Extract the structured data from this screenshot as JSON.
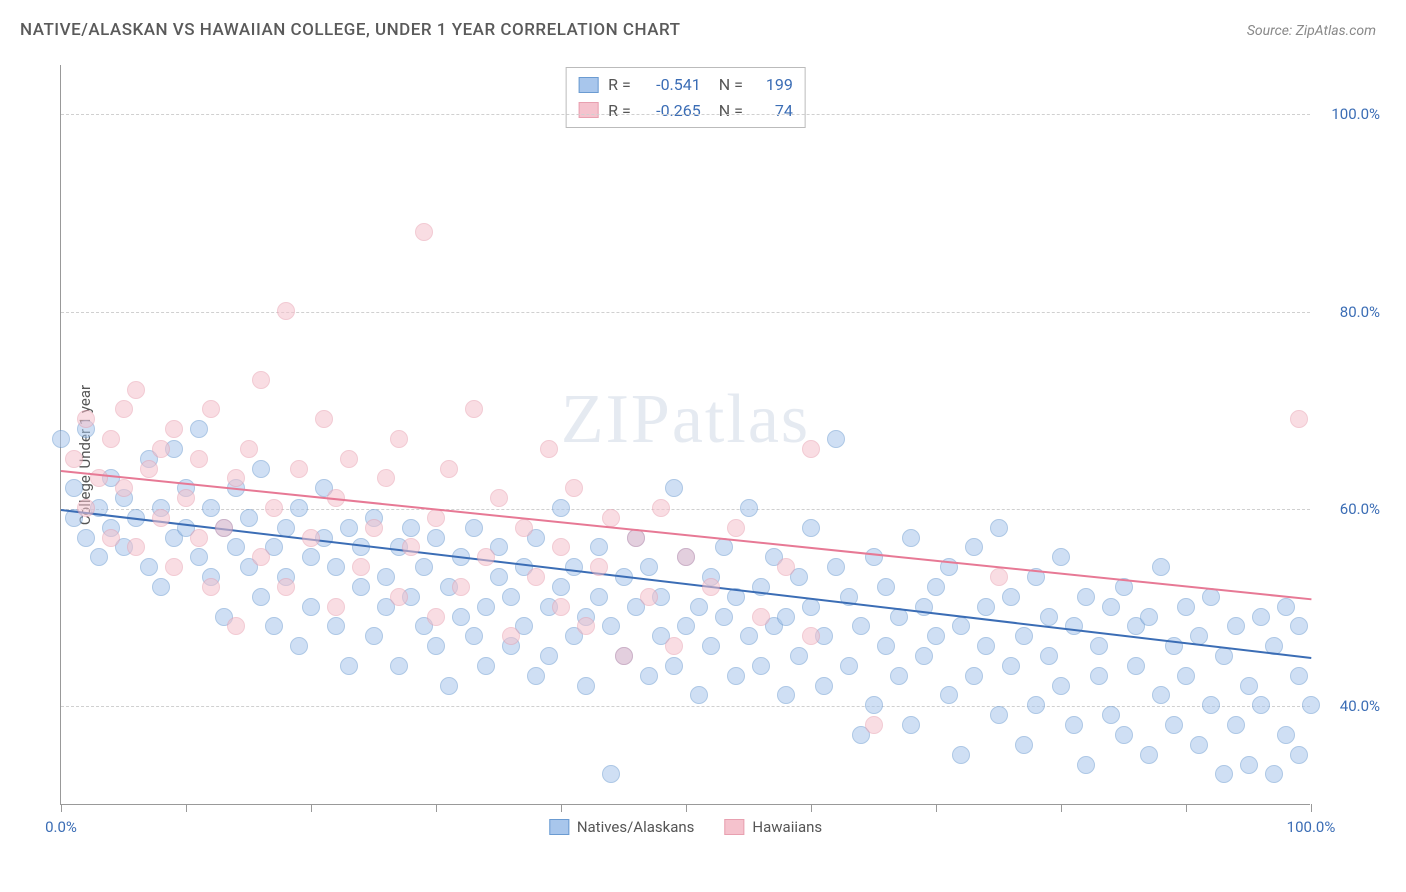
{
  "title": "NATIVE/ALASKAN VS HAWAIIAN COLLEGE, UNDER 1 YEAR CORRELATION CHART",
  "source": "Source: ZipAtlas.com",
  "ylabel": "College, Under 1 year",
  "watermark": "ZIPatlas",
  "chart": {
    "type": "scatter",
    "xlim": [
      0,
      100
    ],
    "ylim": [
      30,
      105
    ],
    "ytick_values": [
      40,
      60,
      80,
      100
    ],
    "ytick_labels": [
      "40.0%",
      "60.0%",
      "80.0%",
      "100.0%"
    ],
    "xtick_values": [
      0,
      10,
      20,
      30,
      40,
      50,
      60,
      70,
      80,
      90,
      100
    ],
    "xtick_label_left": "0.0%",
    "xtick_label_right": "100.0%",
    "grid_color": "#d0d0d0",
    "axis_color": "#999999",
    "label_color": "#3b6db5",
    "background_color": "#ffffff",
    "point_radius": 9,
    "point_opacity": 0.55,
    "series": [
      {
        "name": "Natives/Alaskans",
        "fill": "#a8c6ec",
        "stroke": "#6b9bd1",
        "R": "-0.541",
        "N": "199",
        "trend": {
          "x1": 0,
          "y1": 60,
          "x2": 100,
          "y2": 45,
          "color": "#3b6db5",
          "width": 2
        },
        "points": [
          [
            1,
            59
          ],
          [
            1,
            62
          ],
          [
            2,
            68
          ],
          [
            2,
            57
          ],
          [
            3,
            60
          ],
          [
            3,
            55
          ],
          [
            4,
            63
          ],
          [
            4,
            58
          ],
          [
            5,
            56
          ],
          [
            5,
            61
          ],
          [
            6,
            59
          ],
          [
            7,
            65
          ],
          [
            7,
            54
          ],
          [
            8,
            60
          ],
          [
            8,
            52
          ],
          [
            9,
            66
          ],
          [
            9,
            57
          ],
          [
            10,
            58
          ],
          [
            10,
            62
          ],
          [
            11,
            55
          ],
          [
            11,
            68
          ],
          [
            12,
            53
          ],
          [
            12,
            60
          ],
          [
            13,
            58
          ],
          [
            13,
            49
          ],
          [
            14,
            56
          ],
          [
            14,
            62
          ],
          [
            15,
            54
          ],
          [
            15,
            59
          ],
          [
            16,
            51
          ],
          [
            16,
            64
          ],
          [
            17,
            56
          ],
          [
            17,
            48
          ],
          [
            18,
            58
          ],
          [
            18,
            53
          ],
          [
            19,
            60
          ],
          [
            19,
            46
          ],
          [
            20,
            55
          ],
          [
            20,
            50
          ],
          [
            21,
            57
          ],
          [
            21,
            62
          ],
          [
            22,
            48
          ],
          [
            22,
            54
          ],
          [
            23,
            58
          ],
          [
            23,
            44
          ],
          [
            24,
            52
          ],
          [
            24,
            56
          ],
          [
            25,
            47
          ],
          [
            25,
            59
          ],
          [
            26,
            53
          ],
          [
            26,
            50
          ],
          [
            27,
            56
          ],
          [
            27,
            44
          ],
          [
            28,
            51
          ],
          [
            28,
            58
          ],
          [
            29,
            48
          ],
          [
            29,
            54
          ],
          [
            30,
            46
          ],
          [
            30,
            57
          ],
          [
            31,
            52
          ],
          [
            31,
            42
          ],
          [
            32,
            55
          ],
          [
            32,
            49
          ],
          [
            33,
            47
          ],
          [
            33,
            58
          ],
          [
            34,
            50
          ],
          [
            34,
            44
          ],
          [
            35,
            53
          ],
          [
            35,
            56
          ],
          [
            36,
            46
          ],
          [
            36,
            51
          ],
          [
            37,
            48
          ],
          [
            37,
            54
          ],
          [
            38,
            43
          ],
          [
            38,
            57
          ],
          [
            39,
            50
          ],
          [
            39,
            45
          ],
          [
            40,
            52
          ],
          [
            40,
            60
          ],
          [
            41,
            47
          ],
          [
            41,
            54
          ],
          [
            42,
            49
          ],
          [
            42,
            42
          ],
          [
            43,
            56
          ],
          [
            43,
            51
          ],
          [
            44,
            33
          ],
          [
            44,
            48
          ],
          [
            45,
            53
          ],
          [
            45,
            45
          ],
          [
            46,
            50
          ],
          [
            46,
            57
          ],
          [
            47,
            43
          ],
          [
            47,
            54
          ],
          [
            48,
            47
          ],
          [
            48,
            51
          ],
          [
            49,
            62
          ],
          [
            49,
            44
          ],
          [
            50,
            55
          ],
          [
            50,
            48
          ],
          [
            51,
            50
          ],
          [
            51,
            41
          ],
          [
            52,
            53
          ],
          [
            52,
            46
          ],
          [
            53,
            49
          ],
          [
            53,
            56
          ],
          [
            54,
            43
          ],
          [
            54,
            51
          ],
          [
            55,
            47
          ],
          [
            55,
            60
          ],
          [
            56,
            44
          ],
          [
            56,
            52
          ],
          [
            57,
            48
          ],
          [
            57,
            55
          ],
          [
            58,
            41
          ],
          [
            58,
            49
          ],
          [
            59,
            53
          ],
          [
            59,
            45
          ],
          [
            60,
            50
          ],
          [
            60,
            58
          ],
          [
            61,
            42
          ],
          [
            61,
            47
          ],
          [
            62,
            54
          ],
          [
            62,
            67
          ],
          [
            63,
            44
          ],
          [
            63,
            51
          ],
          [
            64,
            37
          ],
          [
            64,
            48
          ],
          [
            65,
            55
          ],
          [
            65,
            40
          ],
          [
            66,
            46
          ],
          [
            66,
            52
          ],
          [
            67,
            49
          ],
          [
            67,
            43
          ],
          [
            68,
            57
          ],
          [
            68,
            38
          ],
          [
            69,
            50
          ],
          [
            69,
            45
          ],
          [
            70,
            47
          ],
          [
            70,
            52
          ],
          [
            71,
            41
          ],
          [
            71,
            54
          ],
          [
            72,
            48
          ],
          [
            72,
            35
          ],
          [
            73,
            56
          ],
          [
            73,
            43
          ],
          [
            74,
            50
          ],
          [
            74,
            46
          ],
          [
            75,
            39
          ],
          [
            75,
            58
          ],
          [
            76,
            44
          ],
          [
            76,
            51
          ],
          [
            77,
            36
          ],
          [
            77,
            47
          ],
          [
            78,
            53
          ],
          [
            78,
            40
          ],
          [
            79,
            49
          ],
          [
            79,
            45
          ],
          [
            80,
            42
          ],
          [
            80,
            55
          ],
          [
            81,
            38
          ],
          [
            81,
            48
          ],
          [
            82,
            51
          ],
          [
            82,
            34
          ],
          [
            83,
            46
          ],
          [
            83,
            43
          ],
          [
            84,
            50
          ],
          [
            84,
            39
          ],
          [
            85,
            37
          ],
          [
            85,
            52
          ],
          [
            86,
            44
          ],
          [
            86,
            48
          ],
          [
            87,
            35
          ],
          [
            87,
            49
          ],
          [
            88,
            41
          ],
          [
            88,
            54
          ],
          [
            89,
            38
          ],
          [
            89,
            46
          ],
          [
            90,
            43
          ],
          [
            90,
            50
          ],
          [
            91,
            36
          ],
          [
            91,
            47
          ],
          [
            92,
            40
          ],
          [
            92,
            51
          ],
          [
            93,
            33
          ],
          [
            93,
            45
          ],
          [
            94,
            48
          ],
          [
            94,
            38
          ],
          [
            95,
            42
          ],
          [
            95,
            34
          ],
          [
            96,
            49
          ],
          [
            96,
            40
          ],
          [
            97,
            46
          ],
          [
            97,
            33
          ],
          [
            98,
            37
          ],
          [
            98,
            50
          ],
          [
            99,
            35
          ],
          [
            99,
            43
          ],
          [
            99,
            48
          ],
          [
            100,
            40
          ],
          [
            0,
            67
          ]
        ]
      },
      {
        "name": "Hawaiians",
        "fill": "#f5c2cd",
        "stroke": "#e8a0b0",
        "R": "-0.265",
        "N": "74",
        "trend": {
          "x1": 0,
          "y1": 64,
          "x2": 100,
          "y2": 51,
          "color": "#e77995",
          "width": 2
        },
        "points": [
          [
            1,
            65
          ],
          [
            2,
            69
          ],
          [
            2,
            60
          ],
          [
            3,
            63
          ],
          [
            4,
            67
          ],
          [
            4,
            57
          ],
          [
            5,
            70
          ],
          [
            5,
            62
          ],
          [
            6,
            56
          ],
          [
            6,
            72
          ],
          [
            7,
            64
          ],
          [
            8,
            59
          ],
          [
            8,
            66
          ],
          [
            9,
            54
          ],
          [
            9,
            68
          ],
          [
            10,
            61
          ],
          [
            11,
            57
          ],
          [
            11,
            65
          ],
          [
            12,
            52
          ],
          [
            12,
            70
          ],
          [
            13,
            58
          ],
          [
            14,
            63
          ],
          [
            14,
            48
          ],
          [
            15,
            66
          ],
          [
            16,
            55
          ],
          [
            16,
            73
          ],
          [
            17,
            60
          ],
          [
            18,
            80
          ],
          [
            18,
            52
          ],
          [
            19,
            64
          ],
          [
            20,
            57
          ],
          [
            21,
            69
          ],
          [
            22,
            50
          ],
          [
            22,
            61
          ],
          [
            23,
            65
          ],
          [
            24,
            54
          ],
          [
            25,
            58
          ],
          [
            26,
            63
          ],
          [
            27,
            51
          ],
          [
            27,
            67
          ],
          [
            28,
            56
          ],
          [
            29,
            88
          ],
          [
            30,
            59
          ],
          [
            30,
            49
          ],
          [
            31,
            64
          ],
          [
            32,
            52
          ],
          [
            33,
            70
          ],
          [
            34,
            55
          ],
          [
            35,
            61
          ],
          [
            36,
            47
          ],
          [
            37,
            58
          ],
          [
            38,
            53
          ],
          [
            39,
            66
          ],
          [
            40,
            50
          ],
          [
            40,
            56
          ],
          [
            41,
            62
          ],
          [
            42,
            48
          ],
          [
            43,
            54
          ],
          [
            44,
            59
          ],
          [
            45,
            45
          ],
          [
            46,
            57
          ],
          [
            47,
            51
          ],
          [
            48,
            60
          ],
          [
            49,
            46
          ],
          [
            50,
            55
          ],
          [
            52,
            52
          ],
          [
            54,
            58
          ],
          [
            56,
            49
          ],
          [
            58,
            54
          ],
          [
            60,
            47
          ],
          [
            60,
            66
          ],
          [
            65,
            38
          ],
          [
            75,
            53
          ],
          [
            99,
            69
          ]
        ]
      }
    ]
  },
  "bottom_legend": [
    {
      "label": "Natives/Alaskans",
      "fill": "#a8c6ec",
      "stroke": "#6b9bd1"
    },
    {
      "label": "Hawaiians",
      "fill": "#f5c2cd",
      "stroke": "#e8a0b0"
    }
  ]
}
